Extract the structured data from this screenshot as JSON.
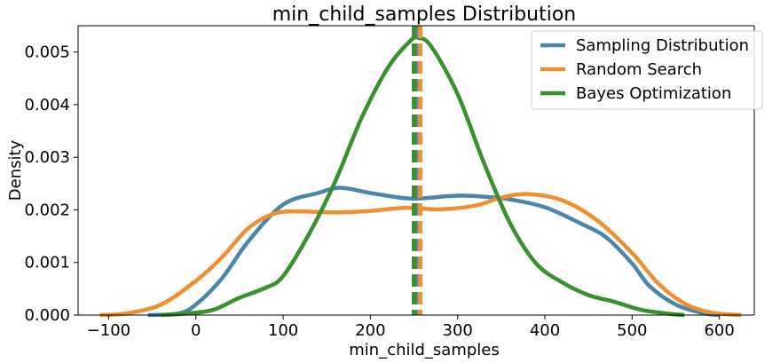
{
  "chart_data": {
    "type": "line",
    "title": "min_child_samples Distribution",
    "xlabel": "min_child_samples",
    "ylabel": "Density",
    "xlim": [
      -135,
      640
    ],
    "ylim": [
      0,
      0.0055
    ],
    "xticks": [
      "−100",
      "0",
      "100",
      "200",
      "300",
      "400",
      "500",
      "600"
    ],
    "xtick_values": [
      -100,
      0,
      100,
      200,
      300,
      400,
      500,
      600
    ],
    "yticks": [
      "0.000",
      "0.001",
      "0.002",
      "0.003",
      "0.004",
      "0.005"
    ],
    "ytick_values": [
      0,
      0.001,
      0.002,
      0.003,
      0.004,
      0.005
    ],
    "grid": false,
    "legend_position": "top-right",
    "series": [
      {
        "name": "Sampling Distribution",
        "color": "#4a86a8",
        "mean": 254,
        "points": [
          [
            -55,
            0
          ],
          [
            -20,
            3e-05
          ],
          [
            0,
            0.0002
          ],
          [
            30,
            0.0007
          ],
          [
            60,
            0.0014
          ],
          [
            100,
            0.0021
          ],
          [
            140,
            0.00232
          ],
          [
            165,
            0.00242
          ],
          [
            200,
            0.00232
          ],
          [
            240,
            0.00222
          ],
          [
            260,
            0.00222
          ],
          [
            300,
            0.00227
          ],
          [
            330,
            0.00225
          ],
          [
            360,
            0.0022
          ],
          [
            400,
            0.00205
          ],
          [
            440,
            0.00175
          ],
          [
            470,
            0.00148
          ],
          [
            500,
            0.00098
          ],
          [
            520,
            0.00055
          ],
          [
            550,
            0.0002
          ],
          [
            580,
            4e-05
          ],
          [
            600,
            0
          ]
        ]
      },
      {
        "name": "Random Search",
        "color": "#ef8f2f",
        "mean": 257,
        "points": [
          [
            -110,
            0
          ],
          [
            -80,
            3e-05
          ],
          [
            -40,
            0.0002
          ],
          [
            0,
            0.00065
          ],
          [
            30,
            0.0011
          ],
          [
            60,
            0.00165
          ],
          [
            90,
            0.00193
          ],
          [
            120,
            0.00197
          ],
          [
            160,
            0.00195
          ],
          [
            200,
            0.00198
          ],
          [
            240,
            0.00204
          ],
          [
            280,
            0.00201
          ],
          [
            320,
            0.00208
          ],
          [
            350,
            0.00223
          ],
          [
            380,
            0.0023
          ],
          [
            420,
            0.00218
          ],
          [
            460,
            0.0018
          ],
          [
            500,
            0.00118
          ],
          [
            530,
            0.0006
          ],
          [
            560,
            0.00022
          ],
          [
            590,
            5e-05
          ],
          [
            625,
            0
          ]
        ]
      },
      {
        "name": "Bayes Optimization",
        "color": "#3a8f2e",
        "mean": 250,
        "points": [
          [
            -40,
            0
          ],
          [
            -10,
            3e-05
          ],
          [
            20,
            0.0001
          ],
          [
            50,
            0.00033
          ],
          [
            80,
            0.00052
          ],
          [
            100,
            0.00074
          ],
          [
            130,
            0.00155
          ],
          [
            160,
            0.00255
          ],
          [
            190,
            0.00375
          ],
          [
            220,
            0.0047
          ],
          [
            245,
            0.0052
          ],
          [
            255,
            0.00527
          ],
          [
            270,
            0.0051
          ],
          [
            300,
            0.0042
          ],
          [
            330,
            0.0029
          ],
          [
            360,
            0.00175
          ],
          [
            390,
            0.00098
          ],
          [
            420,
            0.00062
          ],
          [
            450,
            0.00038
          ],
          [
            480,
            0.00025
          ],
          [
            510,
            0.0001
          ],
          [
            540,
            3e-05
          ],
          [
            560,
            0
          ]
        ]
      }
    ]
  }
}
